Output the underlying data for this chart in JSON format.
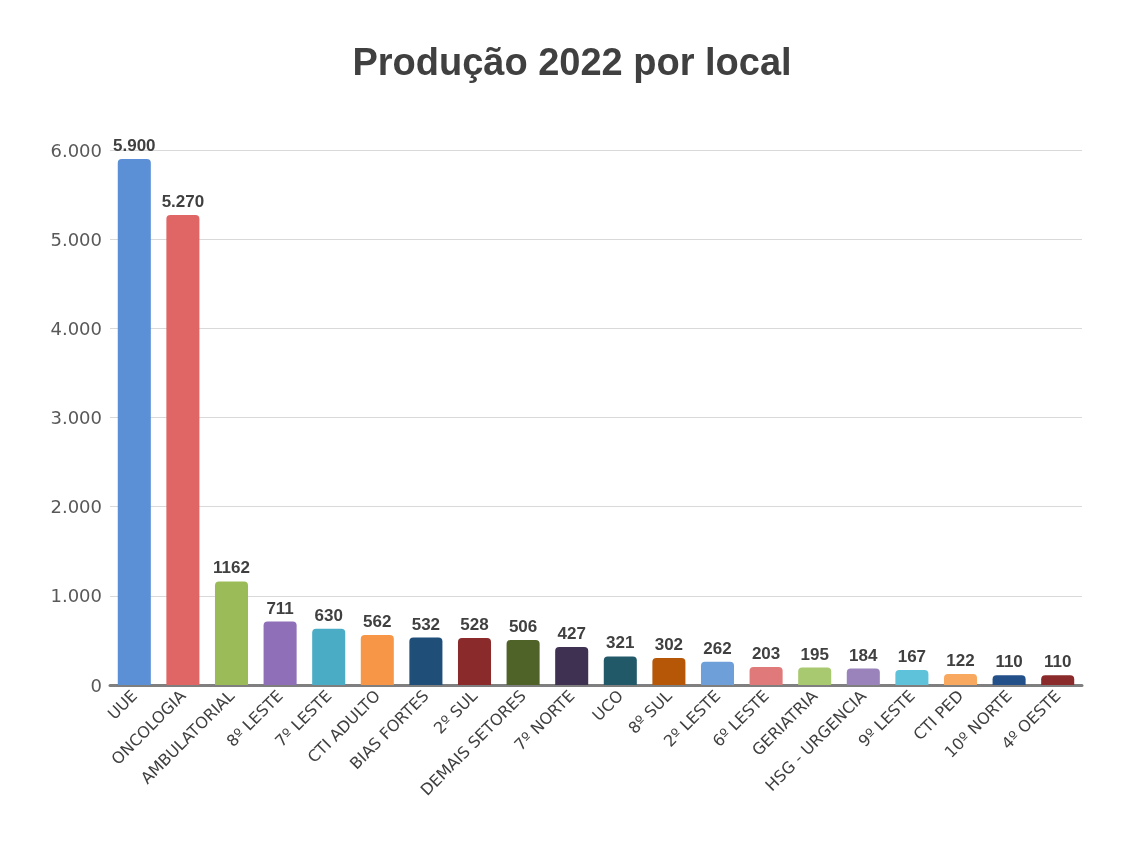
{
  "chart_data": {
    "type": "bar",
    "title": "Produção 2022 por local",
    "categories": [
      "UUE",
      "ONCOLOGIA",
      "AMBULATORIAL",
      "8º LESTE",
      "7º LESTE",
      "CTI ADULTO",
      "BIAS FORTES",
      "2º SUL",
      "DEMAIS SETORES",
      "7º NORTE",
      "UCO",
      "8º SUL",
      "2º LESTE",
      "6º LESTE",
      "GERIATRIA",
      "HSG - URGENCIA",
      "9º LESTE",
      "CTI PED",
      "10º NORTE",
      "4º OESTE"
    ],
    "values": [
      5900,
      5270,
      1162,
      711,
      630,
      562,
      532,
      528,
      506,
      427,
      321,
      302,
      262,
      203,
      195,
      184,
      167,
      122,
      110,
      110
    ],
    "value_labels": [
      "5.900",
      "5.270",
      "1162",
      "711",
      "630",
      "562",
      "532",
      "528",
      "506",
      "427",
      "321",
      "302",
      "262",
      "203",
      "195",
      "184",
      "167",
      "122",
      "110",
      "110"
    ],
    "colors": [
      "#5b8fd6",
      "#e06666",
      "#9bbb59",
      "#8e6fb8",
      "#4bacc6",
      "#f79646",
      "#1f4e79",
      "#8b2a2a",
      "#4f6228",
      "#3f3151",
      "#215968",
      "#b65708",
      "#6f9fd8",
      "#e07a7a",
      "#a9c971",
      "#9a83bb",
      "#5fc2db",
      "#f9a860",
      "#24508a",
      "#8b2a2a"
    ],
    "ylim": [
      0,
      6000
    ],
    "yticks": [
      0,
      {
        "value": 1000,
        "label": "1.000"
      },
      {
        "value": 2000,
        "label": "2.000"
      },
      {
        "value": 3000,
        "label": "3.000"
      },
      {
        "value": 4000,
        "label": "4.000"
      },
      {
        "value": 5000,
        "label": "5.000"
      },
      {
        "value": 6000,
        "label": "6.000"
      }
    ],
    "grid": "y"
  }
}
